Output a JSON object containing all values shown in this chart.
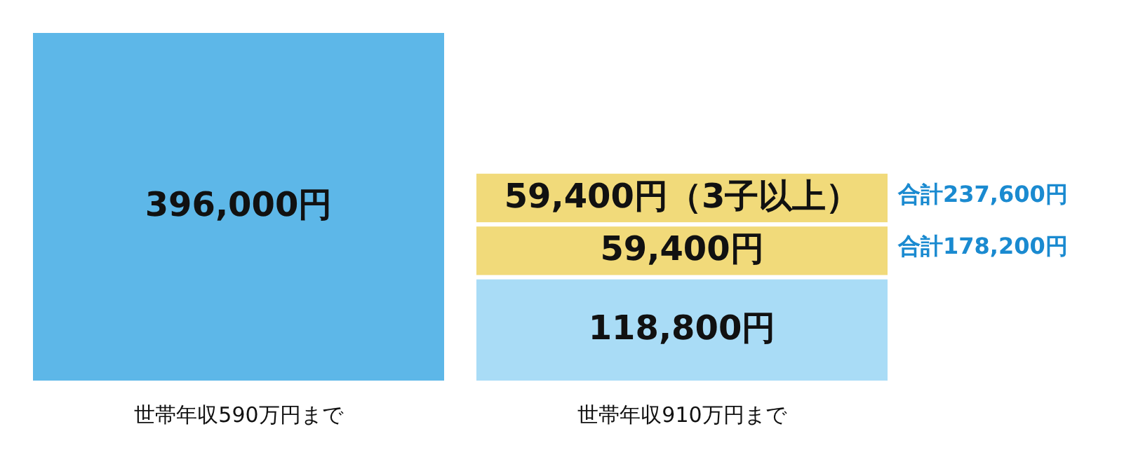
{
  "chart_data": {
    "type": "bar",
    "stacked": true,
    "categories": [
      "世帯年収590万円まで",
      "世帯年収910万円まで"
    ],
    "series": [
      {
        "colors": [
          "#5db7e8",
          "#a9dcf6"
        ],
        "values": [
          396000,
          118800
        ],
        "value_labels": [
          "396,000円",
          "118,800円"
        ]
      },
      {
        "color": "#f1da7a",
        "values": [
          null,
          59400
        ],
        "value_labels": [
          null,
          "59,400円"
        ]
      },
      {
        "color": "#f1da7a",
        "values": [
          null,
          59400
        ],
        "value_labels": [
          null,
          "59,400円（3子以上）"
        ]
      }
    ],
    "annotations": [
      "合計237,600円",
      "合計178,200円"
    ]
  }
}
